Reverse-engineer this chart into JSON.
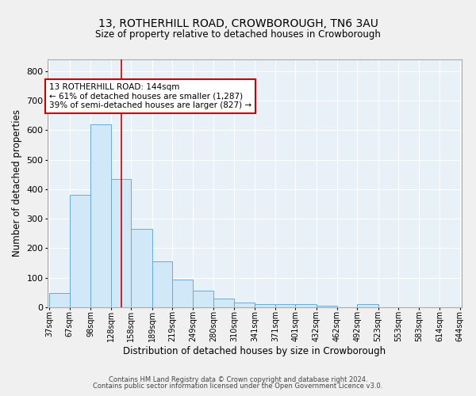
{
  "title": "13, ROTHERHILL ROAD, CROWBOROUGH, TN6 3AU",
  "subtitle": "Size of property relative to detached houses in Crowborough",
  "xlabel": "Distribution of detached houses by size in Crowborough",
  "ylabel": "Number of detached properties",
  "bar_color": "#d0e8f8",
  "bar_edge_color": "#6aaad4",
  "bin_labels": [
    "37sqm",
    "67sqm",
    "98sqm",
    "128sqm",
    "158sqm",
    "189sqm",
    "219sqm",
    "249sqm",
    "280sqm",
    "310sqm",
    "341sqm",
    "371sqm",
    "401sqm",
    "432sqm",
    "462sqm",
    "492sqm",
    "523sqm",
    "553sqm",
    "583sqm",
    "614sqm",
    "644sqm"
  ],
  "bin_edges": [
    37,
    67,
    98,
    128,
    158,
    189,
    219,
    249,
    280,
    310,
    341,
    371,
    401,
    432,
    462,
    492,
    523,
    553,
    583,
    614,
    644
  ],
  "bar_heights": [
    47,
    380,
    620,
    435,
    265,
    155,
    95,
    55,
    30,
    15,
    10,
    10,
    10,
    5,
    0,
    10,
    0,
    0,
    0,
    0
  ],
  "red_line_x": 144,
  "annotation_line1": "13 ROTHERHILL ROAD: 144sqm",
  "annotation_line2": "← 61% of detached houses are smaller (1,287)",
  "annotation_line3": "39% of semi-detached houses are larger (827) →",
  "annotation_box_color": "#ffffff",
  "annotation_box_edge_color": "#cc0000",
  "ylim": [
    0,
    840
  ],
  "yticks": [
    0,
    100,
    200,
    300,
    400,
    500,
    600,
    700,
    800
  ],
  "footer1": "Contains HM Land Registry data © Crown copyright and database right 2024.",
  "footer2": "Contains public sector information licensed under the Open Government Licence v3.0.",
  "background_color": "#e8f0f8",
  "grid_color": "#ffffff",
  "fig_bg_color": "#f0f0f0"
}
